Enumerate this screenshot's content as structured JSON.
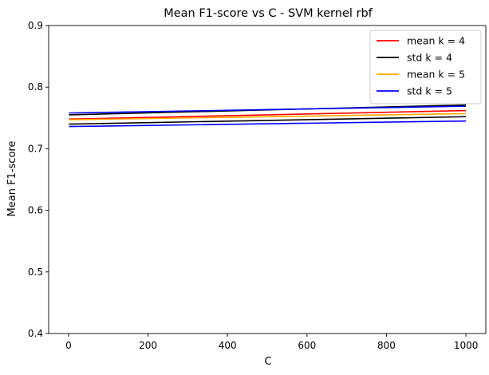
{
  "chart_data": {
    "type": "line",
    "title": "Mean F1-score vs C - SVM kernel rbf",
    "xlabel": "C",
    "ylabel": "Mean F1-score",
    "xlim": [
      -50,
      1050
    ],
    "ylim": [
      0.4,
      0.9
    ],
    "x_ticks": [
      0,
      200,
      400,
      600,
      800,
      1000
    ],
    "y_ticks": [
      0.4,
      0.5,
      0.6,
      0.7,
      0.8,
      0.9
    ],
    "grid": false,
    "legend_position": "top-right",
    "series": [
      {
        "name": "mean k = 4",
        "color": "#ff0000",
        "x": [
          1,
          1000
        ],
        "y": [
          0.748,
          0.762
        ]
      },
      {
        "name": "std k = 4",
        "color": "#000000",
        "x": [
          1,
          1000
        ],
        "y": [
          0.74,
          0.752
        ]
      },
      {
        "name": "std k = 4",
        "color": "#000000",
        "x": [
          1,
          1000
        ],
        "y": [
          0.755,
          0.771
        ]
      },
      {
        "name": "mean k = 5",
        "color": "#ffa500",
        "x": [
          1,
          1000
        ],
        "y": [
          0.747,
          0.757
        ]
      },
      {
        "name": "std k = 5",
        "color": "#0000ff",
        "x": [
          1,
          1000
        ],
        "y": [
          0.736,
          0.745
        ]
      },
      {
        "name": "std k = 5",
        "color": "#0000ff",
        "x": [
          1,
          1000
        ],
        "y": [
          0.758,
          0.769
        ]
      }
    ],
    "legend": [
      {
        "label": "mean k = 4",
        "color": "#ff0000"
      },
      {
        "label": "std k = 4",
        "color": "#000000"
      },
      {
        "label": "mean k = 5",
        "color": "#ffa500"
      },
      {
        "label": "std k = 5",
        "color": "#0000ff"
      }
    ]
  }
}
